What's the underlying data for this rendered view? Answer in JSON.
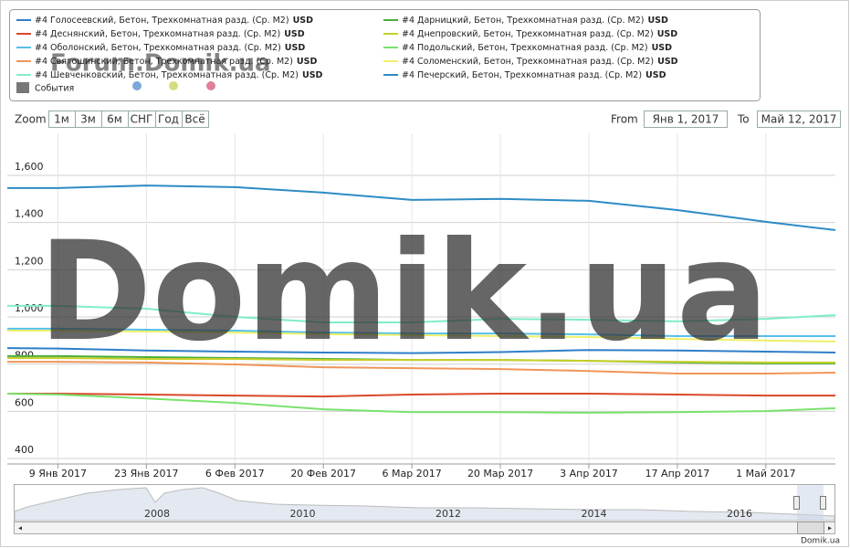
{
  "chart_data": {
    "type": "line",
    "watermark": "Domik.ua",
    "forum_watermark": "Forum.Domik.ua",
    "credit": "Domik.ua",
    "legend_unit": "USD",
    "events_label": "События",
    "zoom_label": "Zoom",
    "zoom_buttons": [
      "1м",
      "3м",
      "6м",
      "СНГ",
      "Год",
      "Всё"
    ],
    "from_label": "From",
    "from_value": "Янв 1, 2017",
    "to_label": "To",
    "to_value": "Май 12, 2017",
    "navigator_years": [
      "2008",
      "2010",
      "2012",
      "2014",
      "2016"
    ],
    "x": [
      "2017-01-01",
      "2017-01-09",
      "2017-01-23",
      "2017-02-06",
      "2017-02-20",
      "2017-03-06",
      "2017-03-20",
      "2017-04-03",
      "2017-04-17",
      "2017-05-01",
      "2017-05-12"
    ],
    "xlim": [
      "2017-01-01",
      "2017-05-12"
    ],
    "xticks": [
      {
        "value": "2017-01-09",
        "label": "9 Янв 2017"
      },
      {
        "value": "2017-01-23",
        "label": "23 Янв 2017"
      },
      {
        "value": "2017-02-06",
        "label": "6 Фев 2017"
      },
      {
        "value": "2017-02-20",
        "label": "20 Фев 2017"
      },
      {
        "value": "2017-03-06",
        "label": "6 Мар 2017"
      },
      {
        "value": "2017-03-20",
        "label": "20 Мар 2017"
      },
      {
        "value": "2017-04-03",
        "label": "3 Апр 2017"
      },
      {
        "value": "2017-04-17",
        "label": "17 Апр 2017"
      },
      {
        "value": "2017-05-01",
        "label": "1 Май 2017"
      }
    ],
    "ylim": [
      377,
      1778
    ],
    "yticks": [
      400,
      600,
      800,
      {
        "value": 1000,
        "label": "1,000"
      },
      {
        "value": 1200,
        "label": "1,200"
      },
      {
        "value": 1400,
        "label": "1,400"
      },
      {
        "value": 1600,
        "label": "1,600"
      }
    ],
    "grid": true,
    "series": [
      {
        "name": "#4 Голосеевский, Бетон, Трехкомнатная разд. (Ср. М2)",
        "color": "#2f7ec8",
        "values": [
          868,
          866,
          858,
          853,
          849,
          847,
          851,
          860,
          858,
          853,
          849
        ]
      },
      {
        "name": "#4 Дарницкий, Бетон, Трехкомнатная разд. (Ср. М2)",
        "color": "#4cae3c",
        "values": [
          834,
          834,
          830,
          826,
          822,
          818,
          818,
          814,
          807,
          803,
          803
        ]
      },
      {
        "name": "#4 Деснянский, Бетон, Трехкомнатная разд. (Ср. М2)",
        "color": "#d9482a",
        "values": [
          675,
          675,
          671,
          667,
          663,
          671,
          675,
          675,
          671,
          667,
          667
        ]
      },
      {
        "name": "#4 Днепровский, Бетон, Трехкомнатная разд. (Ср. М2)",
        "color": "#c8cf2a",
        "values": [
          826,
          826,
          822,
          822,
          818,
          818,
          818,
          814,
          810,
          807,
          807
        ]
      },
      {
        "name": "#4 Оболонский, Бетон, Трехкомнатная разд. (Ср. М2)",
        "color": "#56c0e8",
        "values": [
          950,
          950,
          946,
          942,
          934,
          930,
          930,
          926,
          919,
          919,
          919
        ]
      },
      {
        "name": "#4 Подольский, Бетон, Трехкомнатная разд. (Ср. М2)",
        "color": "#79e26d",
        "values": [
          675,
          671,
          655,
          636,
          609,
          597,
          597,
          594,
          597,
          601,
          613
        ]
      },
      {
        "name": "#4 Святошинский, Бетон, Трехкомнатная разд. (Ср. М2)",
        "color": "#f0955a",
        "values": [
          810,
          810,
          807,
          799,
          787,
          783,
          779,
          771,
          760,
          760,
          764
        ]
      },
      {
        "name": "#4 Соломенский, Бетон, Трехкомнатная разд. (Ср. М2)",
        "color": "#eef06a",
        "values": [
          942,
          942,
          938,
          934,
          927,
          923,
          919,
          915,
          907,
          900,
          896
        ]
      },
      {
        "name": "#4 Шевченковский, Бетон, Трехкомнатная разд. (Ср. М2)",
        "color": "#80eec4",
        "values": [
          1047,
          1047,
          1035,
          1000,
          977,
          977,
          992,
          988,
          981,
          992,
          1008
        ]
      },
      {
        "name": "#4 Печерский, Бетон, Трехкомнатная разд. (Ср. М2)",
        "color": "#2e8bc4",
        "values": [
          1546,
          1546,
          1557,
          1550,
          1527,
          1496,
          1500,
          1492,
          1453,
          1403,
          1368
        ]
      }
    ]
  }
}
